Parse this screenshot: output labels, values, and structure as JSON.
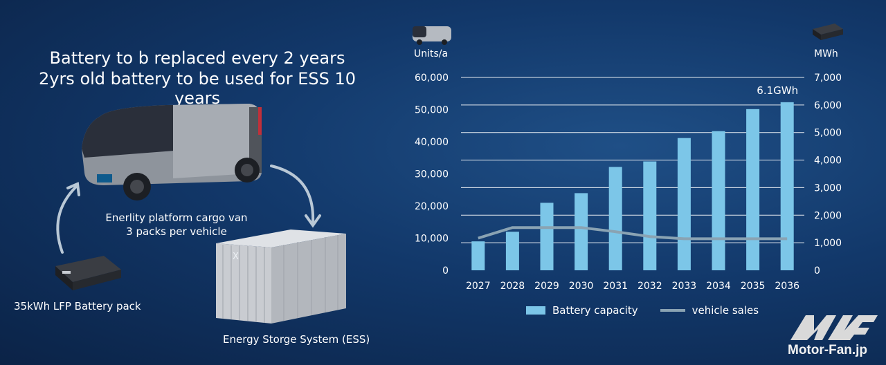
{
  "left_panel": {
    "title_line1": "Battery to b replaced every 2 years",
    "title_line2": "2yrs old battery to be used for ESS 10 years",
    "van_caption_line1": "Enerlity platform cargo van",
    "van_caption_line2": "3 packs per vehicle",
    "battery_caption": "35kWh LFP Battery pack",
    "ess_caption": "Energy Storge System (ESS)",
    "ess_mark": "X"
  },
  "chart_data": {
    "type": "bar",
    "categories": [
      "2027",
      "2028",
      "2029",
      "2030",
      "2031",
      "2032",
      "2033",
      "2034",
      "2035",
      "2036"
    ],
    "series": [
      {
        "name": "Battery capacity",
        "type": "bar",
        "axis": "right",
        "values": [
          1050,
          1400,
          2450,
          2800,
          3750,
          3950,
          4800,
          5050,
          5850,
          6100
        ]
      },
      {
        "name": "vehicle sales",
        "type": "line",
        "axis": "left",
        "values": [
          10000,
          13300,
          13300,
          13300,
          12000,
          10500,
          9800,
          9800,
          9800,
          9800
        ]
      }
    ],
    "left_axis": {
      "label": "Units/a",
      "ylim": [
        0,
        60000
      ],
      "ticks": [
        "0",
        "10,000",
        "20,000",
        "30,000",
        "40,000",
        "50,000",
        "60,000"
      ]
    },
    "right_axis": {
      "label": "MWh",
      "ylim": [
        0,
        7000
      ],
      "ticks": [
        "0",
        "1,000",
        "2,000",
        "3,000",
        "4,000",
        "5,000",
        "6,000",
        "7,000"
      ]
    },
    "annotation": "6.1GWh",
    "legend": [
      "Battery capacity",
      "vehicle sales"
    ],
    "legend_position": "bottom",
    "grid": true,
    "colors": {
      "bar": "#7cc6e8",
      "line": "#8aa3b3",
      "grid": "#ffffff"
    }
  },
  "watermark": "Motor-Fan.jp"
}
